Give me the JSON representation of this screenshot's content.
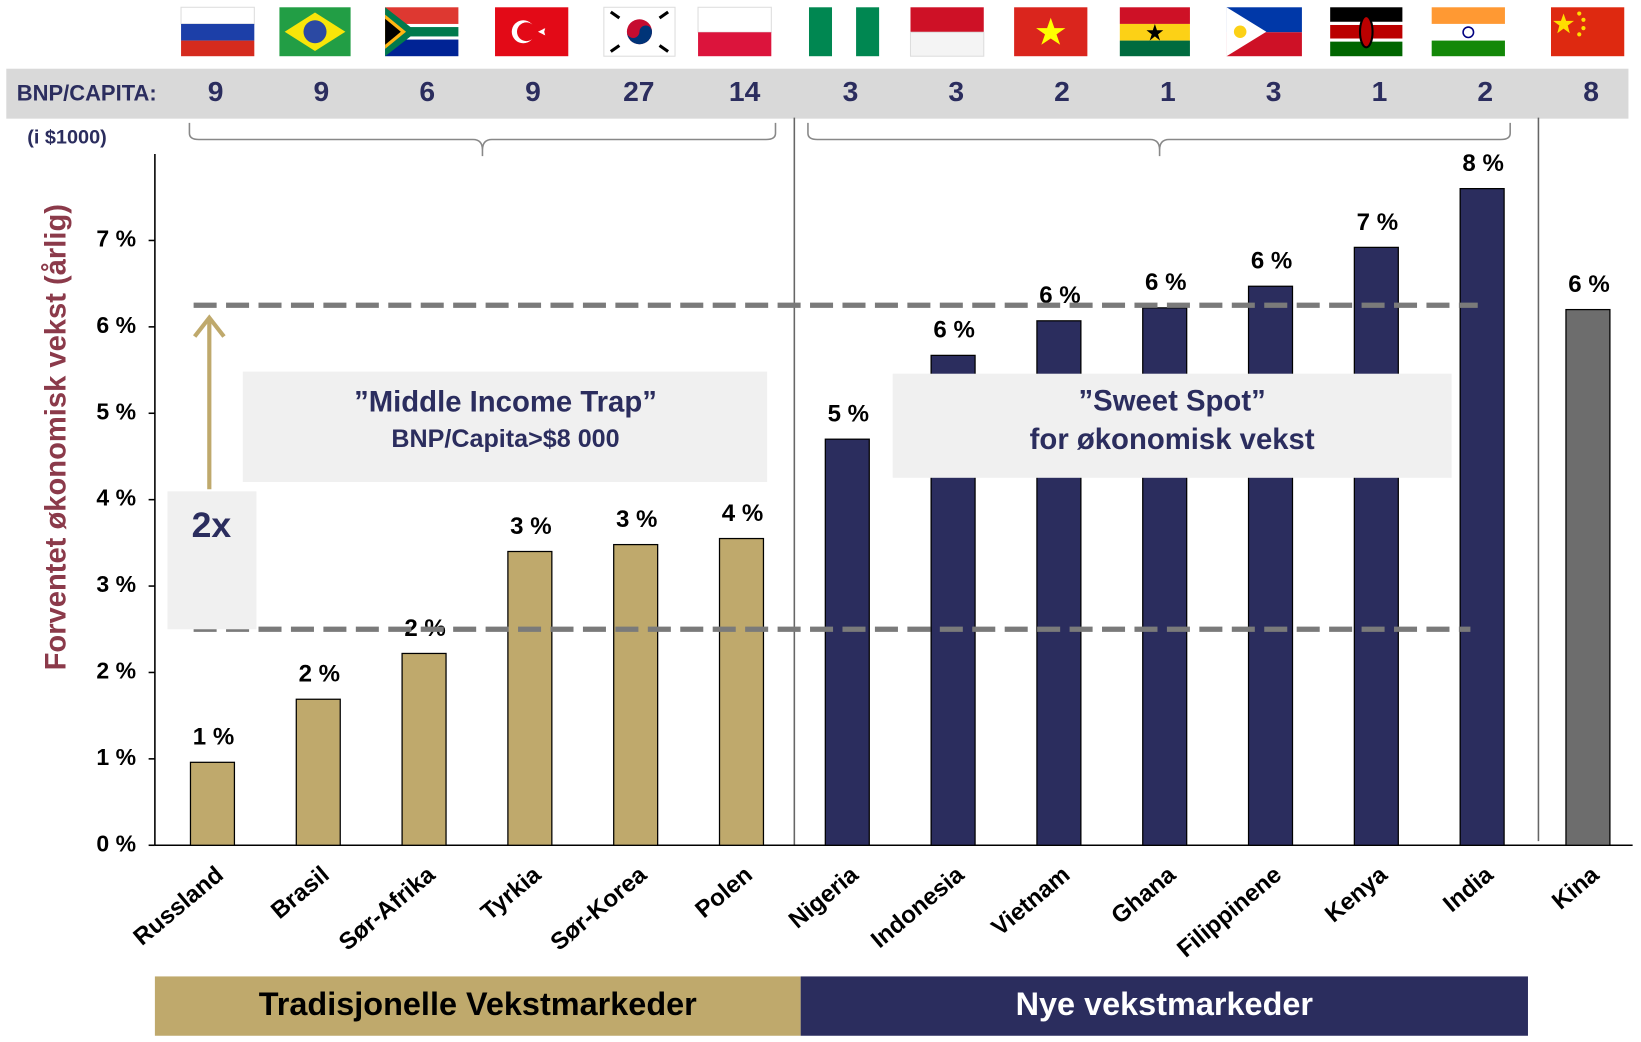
{
  "chart_data": {
    "type": "bar",
    "y_axis_label": "Forventet økonomisk vekst (årlig)",
    "categories": [
      "Russland",
      "Brasil",
      "Sør-Afrika",
      "Tyrkia",
      "Sør-Korea",
      "Polen",
      "Nigeria",
      "Indonesia",
      "Vietnam",
      "Ghana",
      "Filippinene",
      "Kenya",
      "India",
      "Kina"
    ],
    "values": [
      0.96,
      1.69,
      2.22,
      3.4,
      3.48,
      3.55,
      4.7,
      5.67,
      6.07,
      6.22,
      6.47,
      6.92,
      7.6,
      6.2
    ],
    "value_labels": [
      "1 %",
      "2 %",
      "2 %",
      "3 %",
      "3 %",
      "4 %",
      "5 %",
      "6 %",
      "6 %",
      "6 %",
      "6 %",
      "7 %",
      "8 %",
      "6 %"
    ],
    "colors": [
      "#bfa96c",
      "#bfa96c",
      "#bfa96c",
      "#bfa96c",
      "#bfa96c",
      "#bfa96c",
      "#2b2d5e",
      "#2b2d5e",
      "#2b2d5e",
      "#2b2d5e",
      "#2b2d5e",
      "#2b2d5e",
      "#2b2d5e",
      "#6d6d6d"
    ],
    "ylim": [
      0,
      8
    ],
    "yticks": [
      {
        "value": 0,
        "label": "0 %"
      },
      {
        "value": 1,
        "label": "1 %"
      },
      {
        "value": 2,
        "label": "2 %"
      },
      {
        "value": 3,
        "label": "3 %"
      },
      {
        "value": 4,
        "label": "4 %"
      },
      {
        "value": 5,
        "label": "5 %"
      },
      {
        "value": 6,
        "label": "6 %"
      },
      {
        "value": 7,
        "label": "7 %"
      }
    ],
    "gdp_row_label": "BNP/CAPITA:",
    "gdp_unit": "(i $1000)",
    "gdp_per_capita": [
      9,
      9,
      6,
      9,
      27,
      14,
      3,
      3,
      2,
      1,
      3,
      1,
      2,
      8
    ],
    "reference_lines": [
      6.25,
      2.5
    ],
    "annotations": {
      "trap_title": "”Middle Income Trap”",
      "trap_subtitle": "BNP/Capita>$8 000",
      "sweet_title": "”Sweet Spot”",
      "sweet_subtitle": "for økonomisk vekst",
      "multiplier": "2x"
    },
    "groups": [
      {
        "label": "Tradisjonelle Vekstmarkeder",
        "size": 6,
        "color": "#bfa96c"
      },
      {
        "label": "Nye vekstmarkeder",
        "size": 7,
        "color": "#2b2d5e"
      }
    ]
  }
}
